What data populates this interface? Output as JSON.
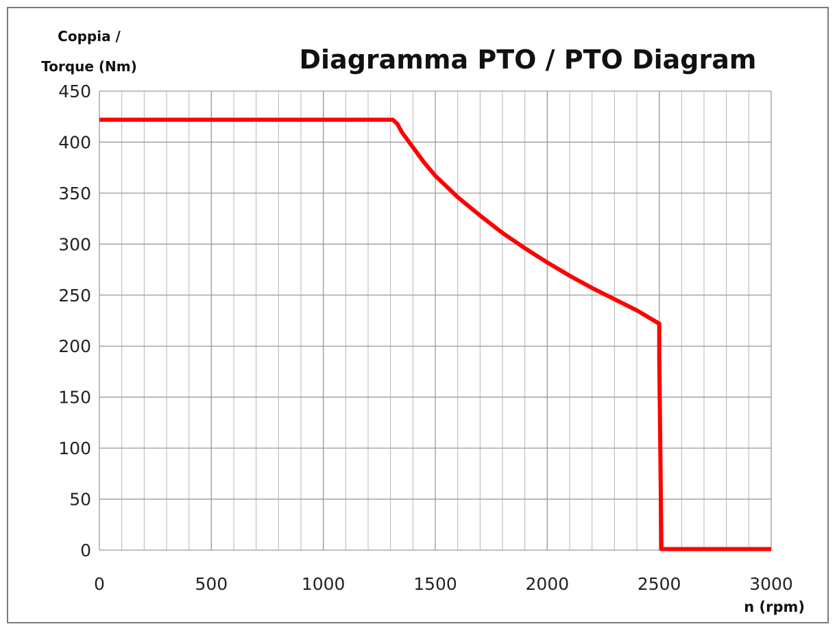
{
  "chart_data": {
    "type": "line",
    "title": "Diagramma PTO / PTO Diagram",
    "ylabel_lines": [
      "Coppia /",
      "Torque (Nm)"
    ],
    "xlabel": "n (rpm)",
    "xlim": [
      0,
      3000
    ],
    "ylim": [
      0,
      450
    ],
    "x_ticks": [
      0,
      500,
      1000,
      1500,
      2000,
      2500,
      3000
    ],
    "y_ticks": [
      0,
      50,
      100,
      150,
      200,
      250,
      300,
      350,
      400,
      450
    ],
    "x_tick_labels": [
      "0",
      "500",
      "1000",
      "1500",
      "2000",
      "2500",
      "3000"
    ],
    "y_tick_labels": [
      "0",
      "50",
      "100",
      "150",
      "200",
      "250",
      "300",
      "350",
      "400",
      "450"
    ],
    "grid": true,
    "x_minor_step": 100,
    "series": [
      {
        "color": "#ff0000",
        "x": [
          0,
          1310,
          1330,
          1350,
          1400,
          1450,
          1500,
          1600,
          1700,
          1800,
          1900,
          2000,
          2100,
          2200,
          2300,
          2400,
          2500,
          2500,
          2510,
          3000
        ],
        "y": [
          422,
          422,
          418,
          410,
          395,
          380,
          367,
          346,
          328,
          311,
          296,
          282,
          269,
          257,
          246,
          235,
          222,
          190,
          1,
          1
        ]
      }
    ]
  }
}
